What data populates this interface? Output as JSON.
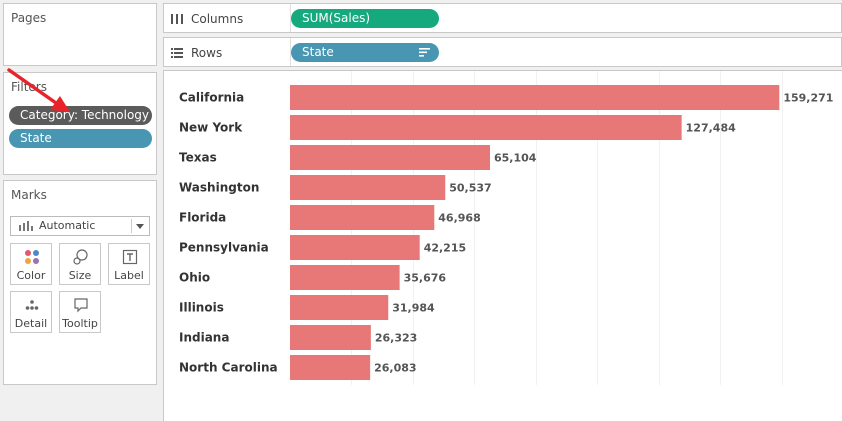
{
  "panels": {
    "pages_title": "Pages",
    "filters_title": "Filters",
    "marks_title": "Marks"
  },
  "filters": [
    {
      "label": "Category: Technology",
      "color": "#5b5b5b"
    },
    {
      "label": "State",
      "color": "#4996b2"
    }
  ],
  "marks": {
    "type_value": "Automatic",
    "buttons": [
      {
        "label": "Color",
        "icon": "color-dots-icon"
      },
      {
        "label": "Size",
        "icon": "size-icon"
      },
      {
        "label": "Label",
        "icon": "label-icon"
      },
      {
        "label": "Detail",
        "icon": "detail-icon"
      },
      {
        "label": "Tooltip",
        "icon": "tooltip-icon"
      }
    ]
  },
  "shelves": {
    "columns": {
      "label": "Columns",
      "pill": "SUM(Sales)",
      "color": "#16a97e"
    },
    "rows": {
      "label": "Rows",
      "pill": "State",
      "color": "#4996b2"
    }
  },
  "annotation": {
    "arrow_color": "#e8242a",
    "points_to": "Category: Technology filter"
  },
  "chart_data": {
    "type": "bar",
    "orientation": "horizontal",
    "categories": [
      "California",
      "New York",
      "Texas",
      "Washington",
      "Florida",
      "Pennsylvania",
      "Ohio",
      "Illinois",
      "Indiana",
      "North Carolina"
    ],
    "values": [
      159271,
      127484,
      65104,
      50537,
      46968,
      42215,
      35676,
      31984,
      26323,
      26083
    ],
    "value_labels": [
      "159,271",
      "127,484",
      "65,104",
      "50,537",
      "46,968",
      "42,215",
      "35,676",
      "31,984",
      "26,323",
      "26,083"
    ],
    "xlim": [
      0,
      180000
    ],
    "grid": true,
    "bar_color": "#e87777"
  }
}
